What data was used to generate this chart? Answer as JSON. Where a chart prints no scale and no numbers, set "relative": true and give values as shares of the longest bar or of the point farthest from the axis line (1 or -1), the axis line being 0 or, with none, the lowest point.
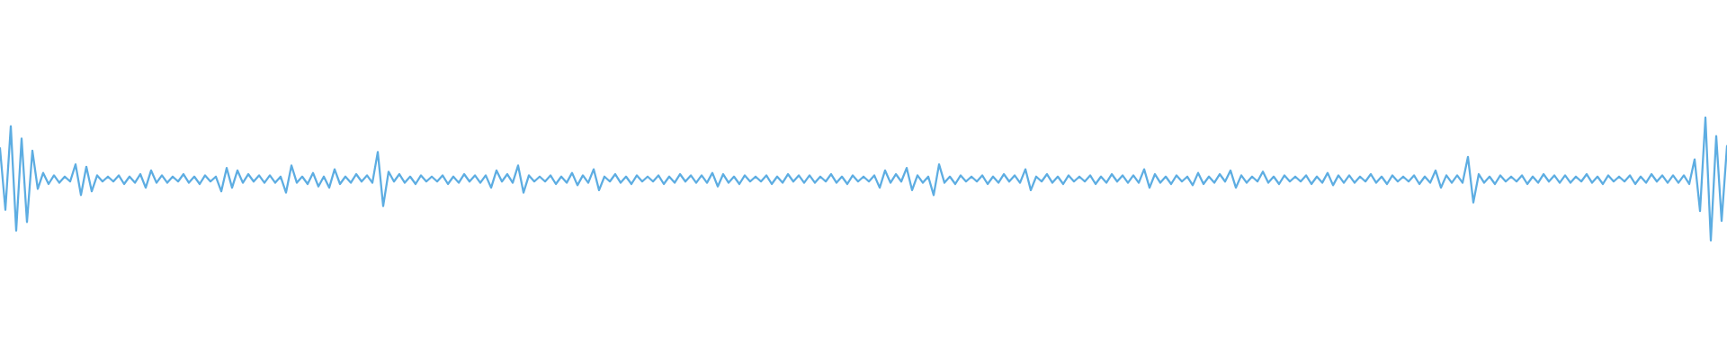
{
  "chart_data": {
    "type": "line",
    "relative": true,
    "color": "#5dade2",
    "categories": [
      null,
      null,
      null,
      null,
      null,
      null,
      null,
      null,
      null,
      null,
      null,
      null,
      null,
      null,
      null,
      null,
      null,
      null,
      null,
      null,
      null,
      null,
      null,
      null,
      null,
      null,
      null,
      null,
      null,
      null,
      null,
      null,
      null,
      null,
      null,
      null,
      null,
      null,
      null,
      null,
      null,
      null,
      null,
      null,
      null,
      null,
      null,
      null,
      null,
      null,
      null,
      null,
      null,
      null,
      null,
      null,
      null,
      null,
      null,
      null,
      null,
      null,
      null,
      null,
      null,
      null,
      null,
      null,
      null,
      null,
      null,
      null,
      null,
      null,
      null,
      null,
      null,
      null,
      null,
      null,
      null,
      null,
      null,
      null,
      null,
      null,
      null,
      null,
      null,
      null,
      null,
      null,
      null,
      null,
      null,
      null,
      null,
      null,
      null,
      null,
      null,
      null,
      null,
      null,
      null,
      null,
      null,
      null,
      null,
      null,
      null,
      null,
      null,
      null,
      null,
      null,
      null,
      null,
      null,
      null,
      null,
      null,
      null,
      null,
      null,
      null,
      null,
      null,
      null,
      null,
      null,
      null,
      null,
      null,
      null,
      null,
      null,
      null,
      null,
      null,
      null,
      null,
      null,
      null,
      null,
      null,
      null,
      null,
      null,
      null,
      null,
      null,
      null,
      null,
      null,
      null,
      null,
      null,
      null,
      null,
      null,
      null,
      null,
      null,
      null,
      null,
      null,
      null,
      null,
      null,
      null,
      null,
      null,
      null,
      null,
      null,
      null,
      null,
      null,
      null,
      null,
      null,
      null,
      null,
      null,
      null,
      null,
      null,
      null,
      null,
      null,
      null,
      null,
      null,
      null,
      null,
      null,
      null,
      null,
      null,
      null,
      null,
      null,
      null,
      null,
      null,
      null,
      null,
      null,
      null,
      null,
      null,
      null,
      null,
      null,
      null,
      null,
      null,
      null,
      null,
      null,
      null,
      null,
      null,
      null,
      null,
      null,
      null,
      null,
      null,
      null,
      null,
      null,
      null,
      null,
      null,
      null,
      null,
      null,
      null,
      null,
      null,
      null,
      null,
      null,
      null,
      null,
      null,
      null,
      null,
      null,
      null,
      null,
      null,
      null,
      null,
      null,
      null,
      null,
      null,
      null,
      null,
      null,
      null,
      null,
      null,
      null,
      null,
      null,
      null,
      null,
      null,
      null,
      null,
      null,
      null,
      null,
      null,
      null,
      null,
      null,
      null,
      null,
      null,
      null,
      null,
      null,
      null,
      null,
      null,
      null,
      null,
      null,
      null,
      null,
      null,
      null,
      null,
      null,
      null,
      null,
      null,
      null,
      null,
      null,
      null,
      null,
      null,
      null,
      null,
      null,
      null,
      null,
      null,
      null,
      null,
      null,
      null,
      null,
      null,
      null
    ],
    "values": [
      0.75,
      0.25,
      0.93,
      0.08,
      0.83,
      0.15,
      0.73,
      0.42,
      0.55,
      0.46,
      0.53,
      0.47,
      0.52,
      0.48,
      0.62,
      0.37,
      0.6,
      0.4,
      0.53,
      0.48,
      0.52,
      0.48,
      0.53,
      0.46,
      0.52,
      0.47,
      0.54,
      0.43,
      0.57,
      0.47,
      0.53,
      0.47,
      0.52,
      0.48,
      0.54,
      0.47,
      0.52,
      0.46,
      0.53,
      0.48,
      0.52,
      0.4,
      0.59,
      0.43,
      0.57,
      0.47,
      0.54,
      0.48,
      0.53,
      0.47,
      0.53,
      0.47,
      0.52,
      0.39,
      0.61,
      0.47,
      0.52,
      0.46,
      0.55,
      0.44,
      0.52,
      0.43,
      0.58,
      0.46,
      0.52,
      0.47,
      0.54,
      0.48,
      0.53,
      0.47,
      0.72,
      0.28,
      0.56,
      0.48,
      0.54,
      0.47,
      0.52,
      0.46,
      0.53,
      0.48,
      0.52,
      0.48,
      0.53,
      0.46,
      0.52,
      0.47,
      0.54,
      0.48,
      0.53,
      0.47,
      0.53,
      0.43,
      0.57,
      0.48,
      0.54,
      0.47,
      0.61,
      0.39,
      0.53,
      0.48,
      0.52,
      0.48,
      0.53,
      0.46,
      0.52,
      0.47,
      0.55,
      0.45,
      0.53,
      0.47,
      0.58,
      0.41,
      0.52,
      0.48,
      0.54,
      0.47,
      0.52,
      0.46,
      0.53,
      0.48,
      0.52,
      0.48,
      0.53,
      0.46,
      0.52,
      0.47,
      0.54,
      0.48,
      0.53,
      0.47,
      0.53,
      0.47,
      0.55,
      0.44,
      0.54,
      0.47,
      0.52,
      0.46,
      0.53,
      0.48,
      0.52,
      0.48,
      0.53,
      0.46,
      0.52,
      0.47,
      0.54,
      0.48,
      0.53,
      0.47,
      0.53,
      0.47,
      0.52,
      0.48,
      0.54,
      0.47,
      0.52,
      0.46,
      0.53,
      0.48,
      0.52,
      0.48,
      0.53,
      0.43,
      0.57,
      0.47,
      0.54,
      0.48,
      0.59,
      0.41,
      0.53,
      0.47,
      0.52,
      0.37,
      0.62,
      0.47,
      0.52,
      0.46,
      0.53,
      0.48,
      0.52,
      0.48,
      0.53,
      0.46,
      0.52,
      0.47,
      0.54,
      0.48,
      0.53,
      0.47,
      0.58,
      0.41,
      0.52,
      0.48,
      0.54,
      0.47,
      0.52,
      0.46,
      0.53,
      0.48,
      0.52,
      0.48,
      0.53,
      0.46,
      0.52,
      0.47,
      0.54,
      0.48,
      0.53,
      0.47,
      0.53,
      0.47,
      0.58,
      0.43,
      0.54,
      0.47,
      0.52,
      0.46,
      0.53,
      0.48,
      0.52,
      0.45,
      0.55,
      0.46,
      0.52,
      0.47,
      0.54,
      0.48,
      0.57,
      0.43,
      0.53,
      0.47,
      0.52,
      0.48,
      0.56,
      0.47,
      0.52,
      0.46,
      0.53,
      0.48,
      0.52,
      0.48,
      0.53,
      0.46,
      0.52,
      0.47,
      0.55,
      0.45,
      0.53,
      0.47,
      0.53,
      0.47,
      0.52,
      0.48,
      0.54,
      0.47,
      0.52,
      0.46,
      0.53,
      0.48,
      0.52,
      0.48,
      0.53,
      0.46,
      0.52,
      0.47,
      0.57,
      0.43,
      0.53,
      0.47,
      0.53,
      0.47,
      0.68,
      0.31,
      0.54,
      0.47,
      0.52,
      0.46,
      0.53,
      0.48,
      0.52,
      0.48,
      0.53,
      0.46,
      0.52,
      0.47,
      0.54,
      0.48,
      0.53,
      0.47,
      0.53,
      0.47,
      0.52,
      0.48,
      0.54,
      0.47,
      0.52,
      0.46,
      0.53,
      0.48,
      0.52,
      0.48,
      0.53,
      0.46,
      0.52,
      0.47,
      0.54,
      0.48,
      0.53,
      0.47,
      0.53,
      0.47,
      0.53,
      0.46,
      0.66,
      0.24,
      1.0,
      0.0,
      0.85,
      0.16,
      0.77
    ]
  }
}
